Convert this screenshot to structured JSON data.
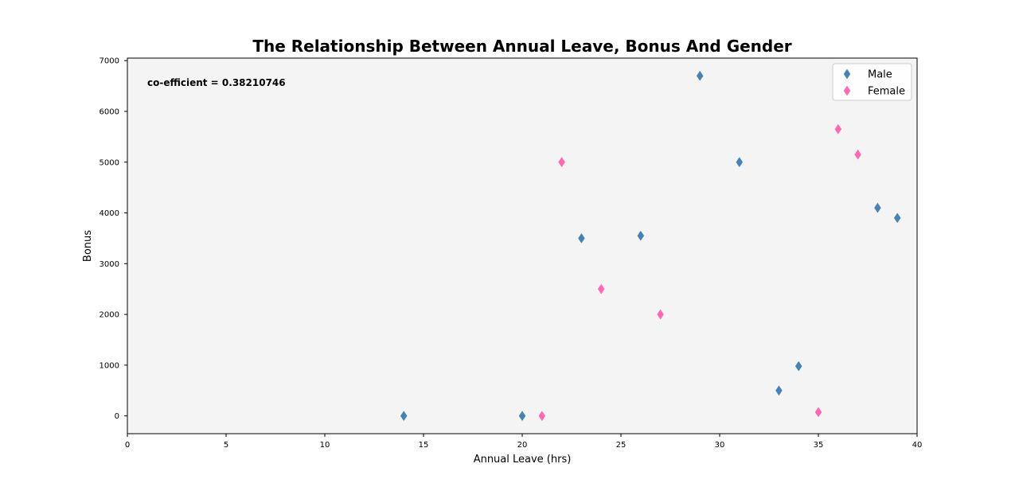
{
  "chart_data": {
    "type": "scatter",
    "title": "The Relationship Between Annual Leave, Bonus And Gender",
    "xlabel": "Annual Leave (hrs)",
    "ylabel": "Bonus",
    "xlim": [
      0,
      40
    ],
    "ylim": [
      -350,
      7050
    ],
    "xticks": [
      0,
      5,
      10,
      15,
      20,
      25,
      30,
      35,
      40
    ],
    "yticks": [
      0,
      1000,
      2000,
      3000,
      4000,
      5000,
      6000,
      7000
    ],
    "xtick_labels": [
      "0",
      "5",
      "10",
      "15",
      "20",
      "25",
      "30",
      "35",
      "40"
    ],
    "ytick_labels": [
      "0",
      "1000",
      "2000",
      "3000",
      "4000",
      "5000",
      "6000",
      "7000"
    ],
    "grid": false,
    "legend_position": "top-right",
    "annotation": "co-efficient = 0.38210746",
    "marker": "diamond",
    "plot_background": "#f4f4f4",
    "series": [
      {
        "name": "Male",
        "color": "#4682b4",
        "points": [
          {
            "x": 14,
            "y": 0
          },
          {
            "x": 20,
            "y": 0
          },
          {
            "x": 23,
            "y": 3500
          },
          {
            "x": 26,
            "y": 3550
          },
          {
            "x": 29,
            "y": 6700
          },
          {
            "x": 31,
            "y": 5000
          },
          {
            "x": 33,
            "y": 500
          },
          {
            "x": 34,
            "y": 980
          },
          {
            "x": 38,
            "y": 4100
          },
          {
            "x": 39,
            "y": 3900
          }
        ]
      },
      {
        "name": "Female",
        "color": "#ff69b4",
        "points": [
          {
            "x": 21,
            "y": 0
          },
          {
            "x": 22,
            "y": 5000
          },
          {
            "x": 24,
            "y": 2500
          },
          {
            "x": 27,
            "y": 2000
          },
          {
            "x": 35,
            "y": 75
          },
          {
            "x": 36,
            "y": 5650
          },
          {
            "x": 37,
            "y": 5150
          }
        ]
      }
    ]
  }
}
